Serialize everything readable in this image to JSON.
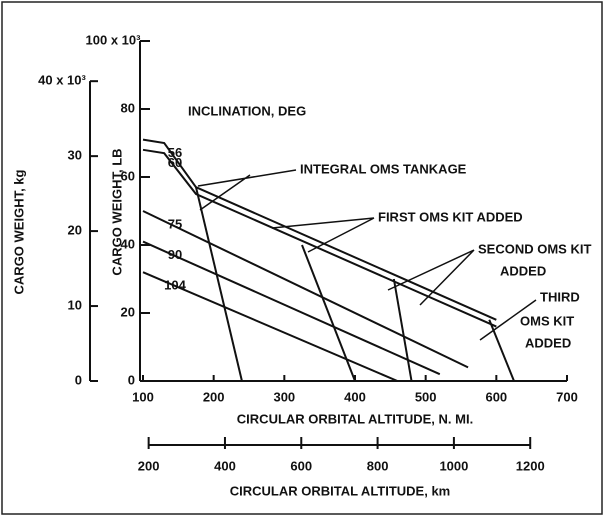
{
  "chart_data": {
    "type": "line",
    "ylabel": "CARGO WEIGHT, LB",
    "y2label": "CARGO WEIGHT, kg",
    "xlabel": "CIRCULAR ORBITAL ALTITUDE, N. MI.",
    "x2label": "CIRCULAR ORBITAL ALTITUDE, km",
    "xlim": [
      100,
      700
    ],
    "xticks": [
      100,
      200,
      300,
      400,
      500,
      600,
      700
    ],
    "x2lim": [
      185.2,
      1296.4
    ],
    "x2ticks": [
      200,
      400,
      600,
      800,
      1000,
      1200
    ],
    "ylim": [
      0,
      100
    ],
    "yticks": [
      0,
      20,
      40,
      60,
      80,
      {
        "value": 100,
        "label": "100 x 10³"
      }
    ],
    "y2lim": [
      0,
      45.36
    ],
    "y2ticks": [
      0,
      10,
      20,
      30,
      {
        "value": 40,
        "label": "40 x 10³"
      }
    ],
    "legend_title": "INCLINATION, DEG",
    "series": [
      {
        "name": "56",
        "color": "#111",
        "x": [
          100,
          130,
          175,
          600
        ],
        "values": [
          71,
          70,
          57,
          18
        ]
      },
      {
        "name": "60",
        "color": "#111",
        "x": [
          100,
          130,
          175,
          600
        ],
        "values": [
          68,
          67,
          55,
          16
        ]
      },
      {
        "name": "75",
        "color": "#111",
        "x": [
          100,
          560
        ],
        "values": [
          50,
          4
        ]
      },
      {
        "name": "90",
        "color": "#111",
        "x": [
          100,
          520
        ],
        "values": [
          41,
          2
        ]
      },
      {
        "name": "104",
        "color": "#111",
        "x": [
          100,
          460
        ],
        "values": [
          32,
          0
        ]
      }
    ],
    "boundaries": [
      {
        "x": [
          175,
          240
        ],
        "values": [
          57,
          0
        ]
      },
      {
        "x": [
          325,
          400
        ],
        "values": [
          40,
          0
        ]
      },
      {
        "x": [
          455,
          480
        ],
        "values": [
          30,
          0
        ]
      },
      {
        "x": [
          590,
          625
        ],
        "values": [
          18,
          0
        ]
      }
    ],
    "annotations": [
      "INTEGRAL OMS TANKAGE",
      "FIRST OMS KIT ADDED",
      "SECOND OMS KIT",
      "ADDED",
      "THIRD",
      "OMS KIT",
      "ADDED"
    ]
  }
}
